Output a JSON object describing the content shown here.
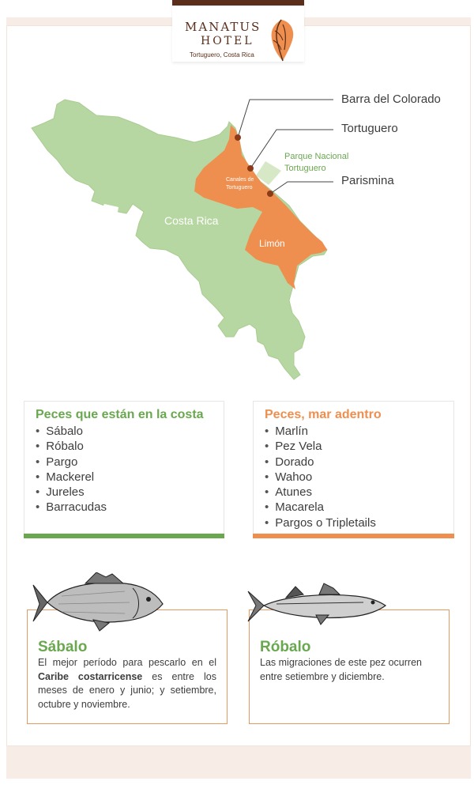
{
  "brand": {
    "name_line1": "MANATUS",
    "name_line2": "HOTEL",
    "location": "Tortuguero, Costa Rica",
    "colors": {
      "brown": "#5a2e1a",
      "orange": "#ef8f4f",
      "green": "#6aa84f",
      "map_green": "#b7d7a2"
    }
  },
  "map": {
    "labels": {
      "country": "Costa Rica",
      "province": "Limón",
      "canals": [
        "Canales de",
        "Tortuguero"
      ],
      "park": [
        "Parque Nacional",
        "Tortuguero"
      ]
    },
    "callouts": [
      "Barra del Colorado",
      "Tortuguero",
      "Parismina"
    ]
  },
  "coast_box": {
    "title": "Peces que están en la costa",
    "items": [
      "Sábalo",
      "Róbalo",
      "Pargo",
      "Mackerel",
      "Jureles",
      "Barracudas"
    ]
  },
  "offshore_box": {
    "title": "Peces, mar adentro",
    "items": [
      "Marlín",
      "Pez Vela",
      "Dorado",
      "Wahoo",
      "Atunes",
      "Macarela",
      "Pargos o Tripletails"
    ]
  },
  "sabalo": {
    "title": "Sábalo",
    "text_before": "El mejor período para pescarlo en el ",
    "text_bold": "Caribe costarricense",
    "text_after": " es entre los meses de enero y junio; y setiembre, octubre y noviembre."
  },
  "robalo": {
    "title": "Róbalo",
    "text": "Las migraciones de este pez ocurren entre setiembre y diciembre."
  }
}
